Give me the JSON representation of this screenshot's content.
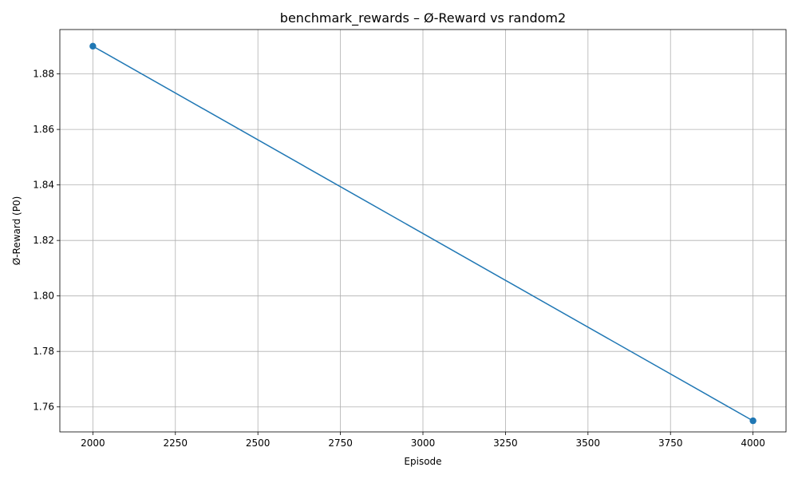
{
  "chart_data": {
    "type": "line",
    "title": "benchmark_rewards – Ø-Reward vs random2",
    "xlabel": "Episode",
    "ylabel": "Ø-Reward (P0)",
    "x": [
      2000,
      4000
    ],
    "series": [
      {
        "values": [
          1.89,
          1.755
        ],
        "color": "#1f77b4",
        "marker": "circle"
      }
    ],
    "xlim": [
      1900,
      4100
    ],
    "ylim": [
      1.751,
      1.896
    ],
    "x_ticks": [
      2000,
      2250,
      2500,
      2750,
      3000,
      3250,
      3500,
      3750,
      4000
    ],
    "x_tick_labels": [
      "2000",
      "2250",
      "2500",
      "2750",
      "3000",
      "3250",
      "3500",
      "3750",
      "4000"
    ],
    "y_ticks": [
      1.76,
      1.78,
      1.8,
      1.82,
      1.84,
      1.86,
      1.88
    ],
    "y_tick_labels": [
      "1.76",
      "1.78",
      "1.80",
      "1.82",
      "1.84",
      "1.86",
      "1.88"
    ],
    "grid": true,
    "grid_color": "#b0b0b0"
  }
}
